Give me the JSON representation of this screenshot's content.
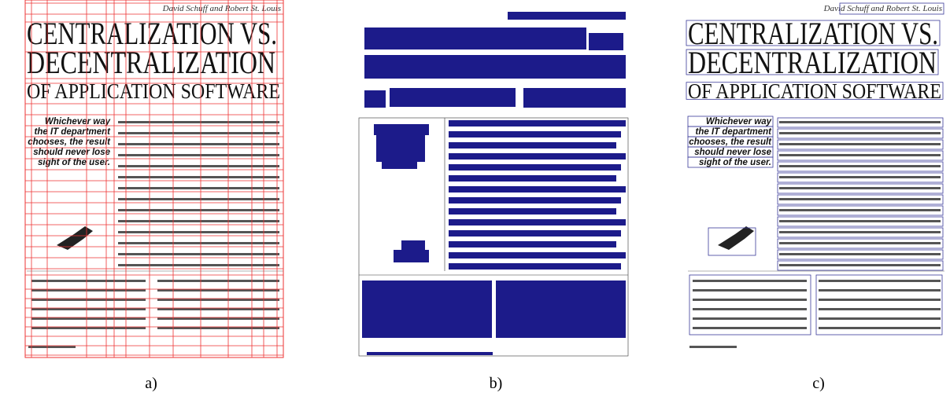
{
  "panels": [
    {
      "label": "a)",
      "author": "David Schuff and Robert St. Louis",
      "title_lines": [
        "CENTRALIZATION VS.",
        "DECENTRALIZATION",
        "OF APPLICATION SOFTWARE"
      ],
      "quote_lines": [
        "Whichever way",
        "the IT department",
        "chooses, the result",
        "should never lose",
        "sight of the user."
      ]
    },
    {
      "label": "b)"
    },
    {
      "label": "c)",
      "author": "David Schuff and Robert St. Louis",
      "title_lines": [
        "CENTRALIZATION VS.",
        "DECENTRALIZATION",
        "OF APPLICATION SOFTWARE"
      ],
      "quote_lines": [
        "Whichever way",
        "the IT department",
        "chooses, the result",
        "should never lose",
        "sight of the user."
      ]
    }
  ]
}
